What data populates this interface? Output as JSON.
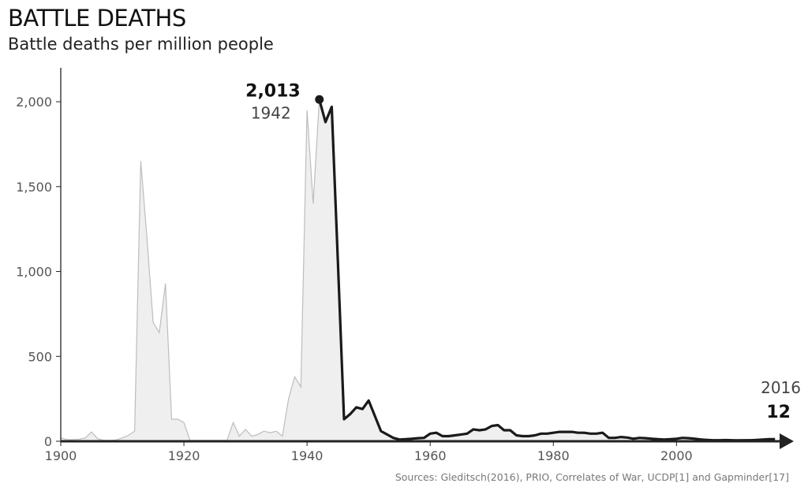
{
  "title": "BATTLE DEATHS",
  "subtitle": "Battle deaths per million people",
  "source": "Sources: Gleditsch(2016), PRIO, Correlates of War, UCDP[1] and Gapminder[17]",
  "colors": {
    "highlight_line": "#1a1a1a",
    "area_fill": "#efefef",
    "area_stroke": "#bdbdbd",
    "axis": "#222222",
    "tick_text": "#555555"
  },
  "chart_data": {
    "type": "area",
    "title": "BATTLE DEATHS",
    "subtitle": "Battle deaths per million people",
    "xlabel": "",
    "ylabel": "",
    "xlim": [
      1900,
      2017
    ],
    "ylim": [
      0,
      2200
    ],
    "x_ticks": [
      "1900",
      "1920",
      "1940",
      "1960",
      "1980",
      "2000"
    ],
    "x_tick_values": [
      1900,
      1920,
      1940,
      1960,
      1980,
      2000
    ],
    "y_ticks": [
      "0",
      "500",
      "1,000",
      "1,500",
      "2,000"
    ],
    "y_tick_values": [
      0,
      500,
      1000,
      1500,
      2000
    ],
    "grid": false,
    "series": [
      {
        "years": [
          1900,
          1901,
          1902,
          1903,
          1904,
          1905,
          1906,
          1907,
          1908,
          1909,
          1910,
          1911,
          1912,
          1913,
          1914,
          1915,
          1916,
          1917,
          1918,
          1919,
          1920,
          1921,
          1922,
          1923,
          1924,
          1925,
          1926,
          1927,
          1928,
          1929,
          1930,
          1931,
          1932,
          1933,
          1934,
          1935,
          1936,
          1937,
          1938,
          1939,
          1940,
          1941,
          1942,
          1943,
          1944,
          1945,
          1946,
          1947,
          1948,
          1949,
          1950,
          1951,
          1952,
          1953,
          1954,
          1955,
          1956,
          1957,
          1958,
          1959,
          1960,
          1961,
          1962,
          1963,
          1964,
          1965,
          1966,
          1967,
          1968,
          1969,
          1970,
          1971,
          1972,
          1973,
          1974,
          1975,
          1976,
          1977,
          1978,
          1979,
          1980,
          1981,
          1982,
          1983,
          1984,
          1985,
          1986,
          1987,
          1988,
          1989,
          1990,
          1991,
          1992,
          1993,
          1994,
          1995,
          1996,
          1997,
          1998,
          1999,
          2000,
          2001,
          2002,
          2003,
          2004,
          2005,
          2006,
          2007,
          2008,
          2009,
          2010,
          2011,
          2012,
          2013,
          2014,
          2015,
          2016
        ],
        "values": [
          20,
          10,
          10,
          12,
          20,
          55,
          15,
          5,
          5,
          8,
          20,
          35,
          60,
          1650,
          1200,
          700,
          640,
          930,
          130,
          130,
          110,
          5,
          5,
          5,
          5,
          5,
          5,
          5,
          110,
          30,
          70,
          30,
          40,
          60,
          50,
          60,
          30,
          250,
          380,
          320,
          1950,
          1400,
          2013,
          1880,
          1970,
          1060,
          130,
          160,
          200,
          190,
          240,
          150,
          60,
          40,
          20,
          10,
          12,
          15,
          18,
          20,
          45,
          50,
          30,
          30,
          35,
          40,
          45,
          70,
          65,
          70,
          90,
          95,
          65,
          65,
          35,
          30,
          30,
          35,
          45,
          45,
          50,
          55,
          55,
          55,
          50,
          50,
          45,
          45,
          50,
          20,
          20,
          25,
          22,
          15,
          20,
          18,
          15,
          12,
          10,
          12,
          15,
          20,
          18,
          15,
          10,
          8,
          6,
          6,
          7,
          6,
          5,
          6,
          6,
          8,
          10,
          12,
          12
        ],
        "highlight_from_year": 1942
      }
    ],
    "annotations": [
      {
        "year_label": "1942",
        "value_label": "2,013",
        "x": 1942,
        "y": 2013,
        "position": "left-of-point"
      },
      {
        "year_label": "2016",
        "value_label": "12",
        "x": 2016,
        "y": 12,
        "position": "above-end"
      }
    ]
  }
}
